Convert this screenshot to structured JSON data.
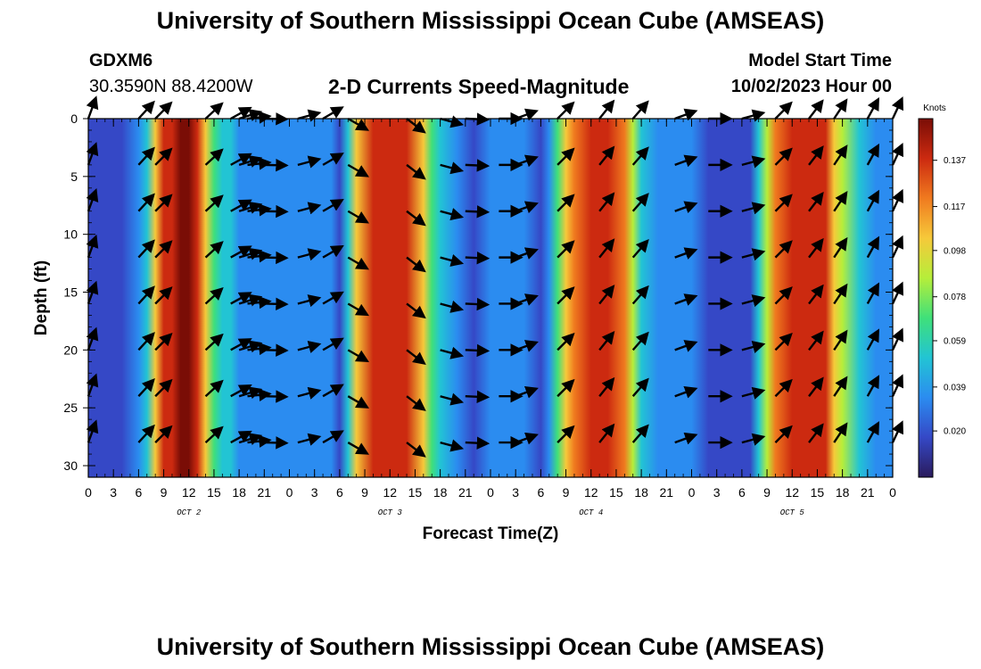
{
  "header": {
    "title": "University of Southern Mississippi Ocean Cube (AMSEAS)",
    "station": "GDXM6",
    "coords": "30.3590N  88.4200W",
    "subtitle": "2-D Currents Speed-Magnitude",
    "model_start_label": "Model Start Time",
    "model_start_value": "10/02/2023 Hour 00"
  },
  "footer": {
    "title": "University of Southern Mississippi Ocean Cube (AMSEAS)"
  },
  "colors": {
    "palette": [
      "#2a1b5c",
      "#3548c6",
      "#2b8cf0",
      "#22c4d4",
      "#3fe07a",
      "#b6ee3a",
      "#f6c93a",
      "#f07a1f",
      "#cc2a10",
      "#7a0d06"
    ]
  },
  "chart_data": {
    "type": "heatmap",
    "xlabel": "Forecast Time(Z)",
    "ylabel": "Depth (ft)",
    "x_range_hours": [
      0,
      96
    ],
    "x_ticks": [
      {
        "h": 0,
        "label": "0"
      },
      {
        "h": 3,
        "label": "3"
      },
      {
        "h": 6,
        "label": "6"
      },
      {
        "h": 9,
        "label": "9"
      },
      {
        "h": 12,
        "label": "12"
      },
      {
        "h": 15,
        "label": "15"
      },
      {
        "h": 18,
        "label": "18"
      },
      {
        "h": 21,
        "label": "21"
      },
      {
        "h": 24,
        "label": "0"
      },
      {
        "h": 27,
        "label": "3"
      },
      {
        "h": 30,
        "label": "6"
      },
      {
        "h": 33,
        "label": "9"
      },
      {
        "h": 36,
        "label": "12"
      },
      {
        "h": 39,
        "label": "15"
      },
      {
        "h": 42,
        "label": "18"
      },
      {
        "h": 45,
        "label": "21"
      },
      {
        "h": 48,
        "label": "0"
      },
      {
        "h": 51,
        "label": "3"
      },
      {
        "h": 54,
        "label": "6"
      },
      {
        "h": 57,
        "label": "9"
      },
      {
        "h": 60,
        "label": "12"
      },
      {
        "h": 63,
        "label": "15"
      },
      {
        "h": 66,
        "label": "18"
      },
      {
        "h": 69,
        "label": "21"
      },
      {
        "h": 72,
        "label": "0"
      },
      {
        "h": 75,
        "label": "3"
      },
      {
        "h": 78,
        "label": "6"
      },
      {
        "h": 81,
        "label": "9"
      },
      {
        "h": 84,
        "label": "12"
      },
      {
        "h": 87,
        "label": "15"
      },
      {
        "h": 90,
        "label": "18"
      },
      {
        "h": 93,
        "label": "21"
      },
      {
        "h": 96,
        "label": "0"
      }
    ],
    "day_labels": [
      {
        "h": 12,
        "label": "OCT 2"
      },
      {
        "h": 36,
        "label": "OCT 3"
      },
      {
        "h": 60,
        "label": "OCT 4"
      },
      {
        "h": 84,
        "label": "OCT 5"
      }
    ],
    "y_range_ft": [
      0,
      31
    ],
    "y_ticks": [
      {
        "v": 0,
        "label": "0"
      },
      {
        "v": 5,
        "label": "5"
      },
      {
        "v": 10,
        "label": "10"
      },
      {
        "v": 15,
        "label": "15"
      },
      {
        "v": 20,
        "label": "20"
      },
      {
        "v": 25,
        "label": "25"
      },
      {
        "v": 30,
        "label": "30"
      }
    ],
    "speed_profile": {
      "hours": [
        0,
        3,
        4,
        6,
        7,
        8,
        9,
        10,
        11,
        12,
        13,
        14,
        15,
        16,
        17,
        18,
        21,
        24,
        27,
        29,
        30,
        31,
        32,
        34,
        36,
        38,
        40,
        41,
        42,
        44,
        46,
        48,
        50,
        52,
        54,
        55,
        56,
        57,
        58,
        60,
        62,
        64,
        65,
        66,
        68,
        70,
        72,
        74,
        76,
        78,
        79,
        80,
        81,
        82,
        84,
        86,
        88,
        89,
        90,
        92,
        94,
        96
      ],
      "knots": [
        0.025,
        0.022,
        0.018,
        0.03,
        0.06,
        0.1,
        0.135,
        0.145,
        0.15,
        0.148,
        0.135,
        0.1,
        0.07,
        0.055,
        0.045,
        0.035,
        0.03,
        0.035,
        0.038,
        0.03,
        0.025,
        0.055,
        0.1,
        0.135,
        0.14,
        0.13,
        0.1,
        0.07,
        0.045,
        0.03,
        0.022,
        0.028,
        0.035,
        0.03,
        0.025,
        0.04,
        0.07,
        0.1,
        0.125,
        0.135,
        0.13,
        0.115,
        0.09,
        0.06,
        0.04,
        0.03,
        0.028,
        0.025,
        0.02,
        0.015,
        0.025,
        0.05,
        0.085,
        0.115,
        0.13,
        0.135,
        0.13,
        0.11,
        0.08,
        0.05,
        0.035,
        0.03
      ]
    },
    "colorbar": {
      "label": "Knots",
      "range": [
        0.0,
        0.155
      ],
      "ticks": [
        {
          "v": 0.137,
          "label": "0.137"
        },
        {
          "v": 0.117,
          "label": "0.117"
        },
        {
          "v": 0.098,
          "label": "0.098"
        },
        {
          "v": 0.078,
          "label": "0.078"
        },
        {
          "v": 0.059,
          "label": "0.059"
        },
        {
          "v": 0.039,
          "label": "0.039"
        },
        {
          "v": 0.02,
          "label": "0.020"
        }
      ]
    },
    "vector_times_hours": [
      0,
      6,
      8,
      14,
      17,
      18,
      19,
      21,
      25,
      28,
      31,
      38,
      42,
      45,
      49,
      51,
      56,
      61,
      65,
      70,
      74,
      78,
      82,
      86,
      89,
      93,
      96
    ],
    "vector_depths_ft": [
      0,
      4,
      8,
      12,
      16,
      20,
      24,
      28
    ],
    "vector_directions_by_hour": {
      "hours": [
        0,
        4,
        8,
        12,
        16,
        20,
        24,
        28,
        32,
        36,
        40,
        44,
        48,
        52,
        56,
        60,
        64,
        68,
        72,
        76,
        80,
        84,
        88,
        92,
        96
      ],
      "deg": [
        20,
        40,
        45,
        45,
        50,
        95,
        80,
        60,
        140,
        135,
        120,
        90,
        100,
        60,
        45,
        40,
        35,
        60,
        80,
        100,
        50,
        40,
        35,
        30,
        25
      ]
    }
  }
}
